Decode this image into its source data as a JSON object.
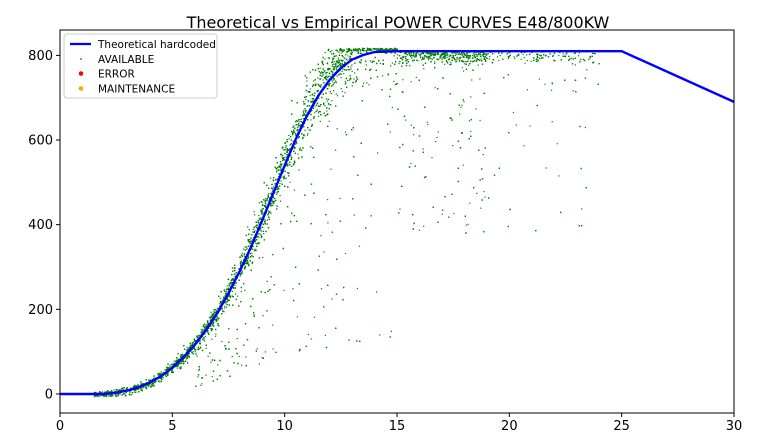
{
  "chart_data": {
    "type": "scatter",
    "title": "Theoretical vs Empirical POWER CURVES E48/800KW",
    "xlabel": "",
    "ylabel": "",
    "xlim": [
      0,
      30
    ],
    "ylim": [
      -45,
      860
    ],
    "x_ticks": [
      0,
      5,
      10,
      15,
      20,
      25,
      30
    ],
    "x_tick_labels": [
      "0",
      "5",
      "10",
      "15",
      "20",
      "25",
      "30"
    ],
    "y_ticks": [
      0,
      200,
      400,
      600,
      800
    ],
    "y_tick_labels": [
      "0",
      "200",
      "400",
      "600",
      "800"
    ],
    "grid": false,
    "legend_position": "top-left",
    "colors": {
      "theoretical": "#0000ff",
      "available": "#008000",
      "error": "#ff0000",
      "maintenance": "#ffa500"
    },
    "series": [
      {
        "name": "Theoretical hardcoded",
        "kind": "line",
        "x": [
          0,
          1,
          2,
          2.5,
          3,
          3.5,
          4,
          4.5,
          5,
          5.5,
          6,
          6.5,
          7,
          7.5,
          8,
          8.5,
          9,
          9.5,
          10,
          10.5,
          11,
          11.5,
          12,
          12.5,
          13,
          13.5,
          14,
          15,
          16,
          20,
          25,
          30
        ],
        "y": [
          0,
          0,
          0,
          3,
          8,
          16,
          27,
          42,
          62,
          87,
          116,
          151,
          191,
          238,
          290,
          347,
          410,
          475,
          540,
          603,
          658,
          705,
          742,
          770,
          790,
          801,
          808,
          810,
          810,
          810,
          810,
          690
        ]
      },
      {
        "name": "AVAILABLE",
        "kind": "scatter",
        "point_count": 7000,
        "description": "Empirical power measurements scattered around the theoretical curve"
      },
      {
        "name": "ERROR",
        "kind": "scatter",
        "x": [],
        "y": []
      },
      {
        "name": "MAINTENANCE",
        "kind": "scatter",
        "x": [],
        "y": []
      }
    ],
    "legend": [
      "Theoretical hardcoded",
      "AVAILABLE",
      "ERROR",
      "MAINTENANCE"
    ]
  }
}
